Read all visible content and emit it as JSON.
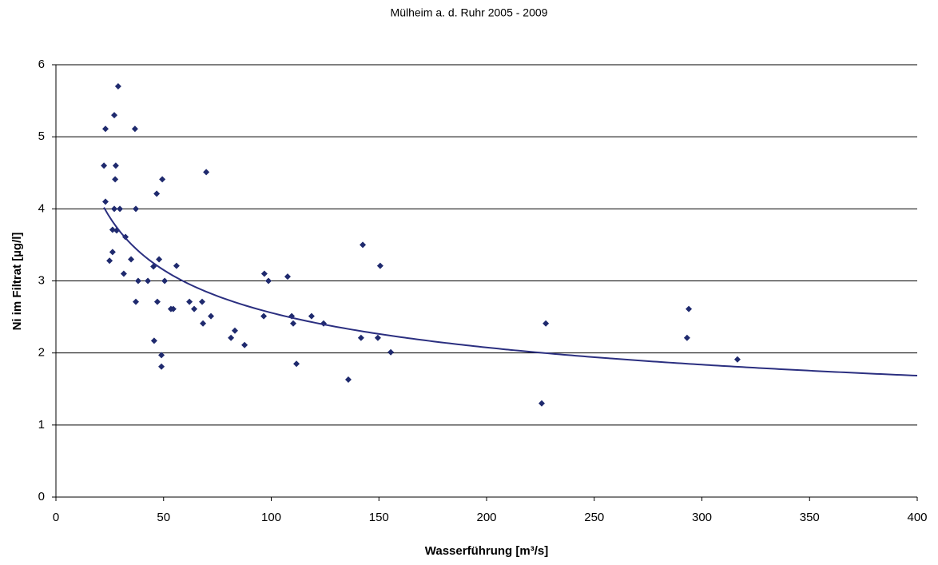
{
  "chart_data": {
    "type": "scatter",
    "title": "Mülheim a. d. Ruhr 2005 - 2009",
    "x_label": "Wasserführung [m³/s]",
    "y_label": "Ni im Filtrat [µg/l]",
    "color": "#1f2a6e",
    "trendline": "power",
    "trendline_color": "#2b2f80",
    "xlim": [
      0,
      400
    ],
    "xticks": [
      0,
      50,
      100,
      150,
      200,
      250,
      300,
      350,
      400
    ],
    "ylim": [
      0,
      6
    ],
    "yticks": [
      0,
      1,
      2,
      3,
      4,
      5,
      6
    ],
    "grid": true,
    "x": [
      28.9,
      27.1,
      23.0,
      36.7,
      22.3,
      27.8,
      69.8,
      49.4,
      27.5,
      46.8,
      23.0,
      27.1,
      29.7,
      37.1,
      26.3,
      28.2,
      32.3,
      142.5,
      26.3,
      34.9,
      47.9,
      24.9,
      150.6,
      56.0,
      45.3,
      31.5,
      96.8,
      107.6,
      38.2,
      42.7,
      50.5,
      98.7,
      37.1,
      47.1,
      62.0,
      67.9,
      293.9,
      53.4,
      54.5,
      64.2,
      72.0,
      96.5,
      109.5,
      118.7,
      68.3,
      110.2,
      124.3,
      227.5,
      83.1,
      81.3,
      141.7,
      149.5,
      293.1,
      45.6,
      87.6,
      155.5,
      49.0,
      316.5,
      111.7,
      49.0,
      135.8,
      225.6
    ],
    "values": [
      5.7,
      5.3,
      5.11,
      5.11,
      4.6,
      4.6,
      4.51,
      4.41,
      4.41,
      4.21,
      4.1,
      4.0,
      4.0,
      4.0,
      3.71,
      3.7,
      3.61,
      3.5,
      3.4,
      3.3,
      3.3,
      3.28,
      3.21,
      3.21,
      3.2,
      3.1,
      3.1,
      3.06,
      3.0,
      3.0,
      3.0,
      3.0,
      2.71,
      2.71,
      2.71,
      2.71,
      2.61,
      2.61,
      2.61,
      2.61,
      2.51,
      2.51,
      2.51,
      2.51,
      2.41,
      2.41,
      2.41,
      2.41,
      2.31,
      2.21,
      2.21,
      2.21,
      2.21,
      2.17,
      2.11,
      2.01,
      1.97,
      1.91,
      1.85,
      1.81,
      1.63,
      1.3
    ]
  }
}
